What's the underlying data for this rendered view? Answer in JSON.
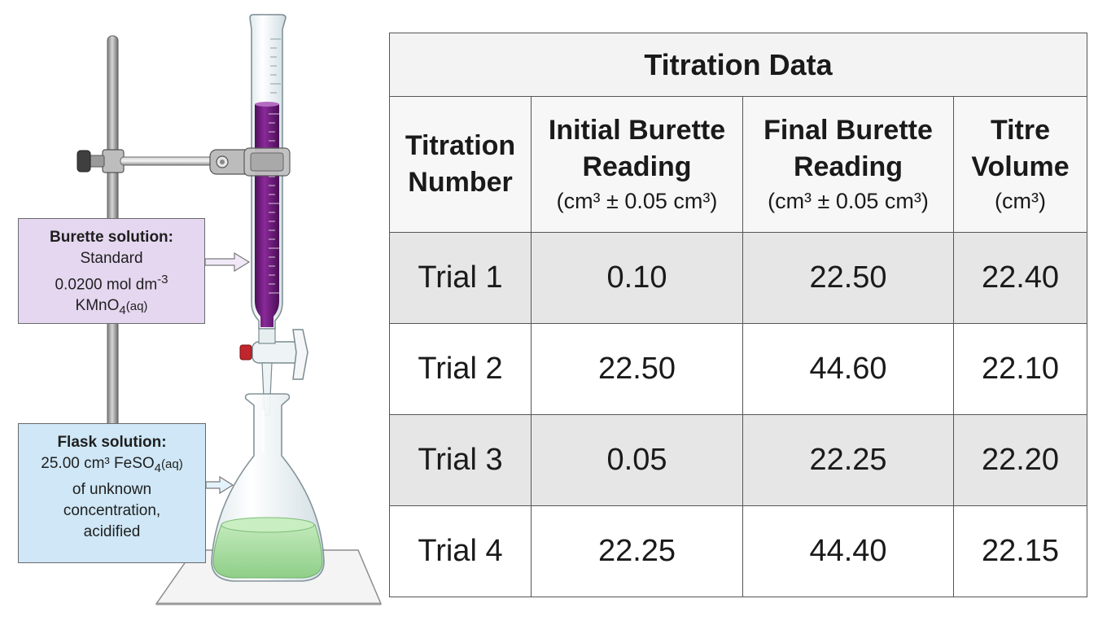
{
  "labels": {
    "burette": {
      "title": "Burette solution:",
      "line1": "Standard",
      "line2_main": "0.0200 mol dm",
      "line2_sup": "-3",
      "line3_main": "KMnO",
      "line3_sub": "4",
      "line3_tail": "(aq)"
    },
    "flask": {
      "title": "Flask solution:",
      "line1_main": "25.00 cm³ FeSO",
      "line1_sub": "4",
      "line1_tail": "(aq)",
      "line2": "of unknown",
      "line3": "concentration,",
      "line4": "acidified"
    }
  },
  "colors": {
    "permanganate": "#6a1a78",
    "flask_solution": "#9fd49a",
    "burette_box": "#e5d7f0",
    "flask_box": "#cfe7f6"
  },
  "table": {
    "title": "Titration Data",
    "headers": [
      {
        "line1": "Titration",
        "line2": "Number",
        "unit": ""
      },
      {
        "line1": "Initial Burette",
        "line2": "Reading",
        "unit": "(cm³ ± 0.05 cm³)"
      },
      {
        "line1": "Final Burette",
        "line2": "Reading",
        "unit": "(cm³ ± 0.05 cm³)"
      },
      {
        "line1": "Titre",
        "line2": "Volume",
        "unit": "(cm³)"
      }
    ],
    "rows": [
      [
        "Trial 1",
        "0.10",
        "22.50",
        "22.40"
      ],
      [
        "Trial 2",
        "22.50",
        "44.60",
        "22.10"
      ],
      [
        "Trial 3",
        "0.05",
        "22.25",
        "22.20"
      ],
      [
        "Trial 4",
        "22.25",
        "44.40",
        "22.15"
      ]
    ]
  }
}
